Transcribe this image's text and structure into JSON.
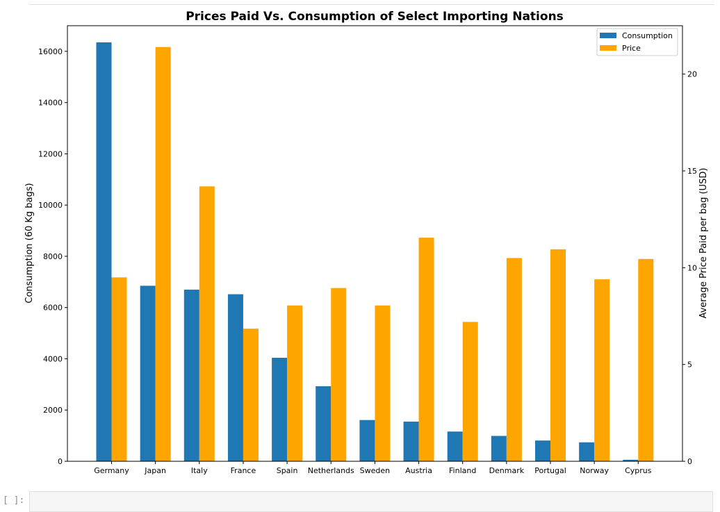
{
  "notebook": {
    "prompt": "[ ]:"
  },
  "chart_data": {
    "type": "bar",
    "title": "Prices Paid Vs. Consumption of Select Importing Nations",
    "xlabel": "",
    "ylabel": "Consumption (60 Kg bags)",
    "y2label": "Average Price Paid per bag (USD)",
    "categories": [
      "Germany",
      "Japan",
      "Italy",
      "France",
      "Spain",
      "Netherlands",
      "Sweden",
      "Austria",
      "Finland",
      "Denmark",
      "Portugal",
      "Norway",
      "Cyprus"
    ],
    "series": [
      {
        "name": "Consumption",
        "axis": "left",
        "color": "#1f77b4",
        "values": [
          16350,
          6850,
          6700,
          6520,
          4040,
          2930,
          1610,
          1550,
          1160,
          990,
          810,
          740,
          60
        ]
      },
      {
        "name": "Price",
        "axis": "right",
        "color": "#ffa500",
        "values": [
          9.5,
          21.4,
          14.2,
          6.85,
          8.05,
          8.95,
          8.05,
          11.55,
          7.2,
          10.5,
          10.95,
          9.4,
          10.45
        ]
      }
    ],
    "ylim": [
      0,
      17000
    ],
    "y2lim": [
      0,
      22.5
    ],
    "yticks": [
      0,
      2000,
      4000,
      6000,
      8000,
      10000,
      12000,
      14000,
      16000
    ],
    "y2ticks": [
      0,
      5,
      10,
      15,
      20
    ],
    "legend": "top-right",
    "grid": false
  }
}
